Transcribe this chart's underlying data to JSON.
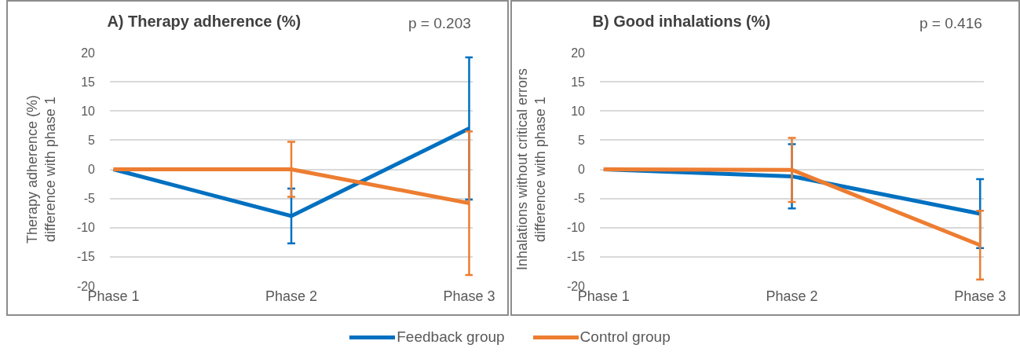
{
  "chart_data": [
    {
      "type": "line",
      "title": "A) Therapy adherence (%)",
      "ylabel": "Therapy adherence (%)\ndifference with phase 1",
      "annotations": [
        "p = 0.203"
      ],
      "categories": [
        "Phase 1",
        "Phase 2",
        "Phase 3"
      ],
      "ylim": [
        -20,
        20
      ],
      "yticks": [
        -20,
        -15,
        -10,
        -5,
        0,
        5,
        10,
        15,
        20
      ],
      "grid": "y",
      "legend": "bottom",
      "marker": "none",
      "line_style": "solid",
      "series": [
        {
          "name": "Feedback group",
          "color": "#0070c0",
          "values": [
            0,
            -8,
            7
          ],
          "errors": [
            null,
            4.7,
            12.2
          ]
        },
        {
          "name": "Control group",
          "color": "#ed7d31",
          "values": [
            0,
            0,
            -5.8
          ],
          "errors": [
            null,
            4.7,
            12.3
          ]
        }
      ]
    },
    {
      "type": "line",
      "title": "B) Good inhalations (%)",
      "ylabel": "Inhalations without critical errors\ndifference with phase 1",
      "annotations": [
        "p = 0.416"
      ],
      "categories": [
        "Phase 1",
        "Phase 2",
        "Phase 3"
      ],
      "ylim": [
        -20,
        20
      ],
      "yticks": [
        -20,
        -15,
        -10,
        -5,
        0,
        5,
        10,
        15,
        20
      ],
      "grid": "y",
      "legend": "bottom",
      "marker": "none",
      "line_style": "solid",
      "series": [
        {
          "name": "Feedback group",
          "color": "#0070c0",
          "values": [
            0,
            -1.2,
            -7.6
          ],
          "errors": [
            null,
            5.5,
            5.9
          ]
        },
        {
          "name": "Control group",
          "color": "#ed7d31",
          "values": [
            0,
            -0.1,
            -13
          ],
          "errors": [
            null,
            5.5,
            5.9
          ]
        }
      ]
    }
  ]
}
